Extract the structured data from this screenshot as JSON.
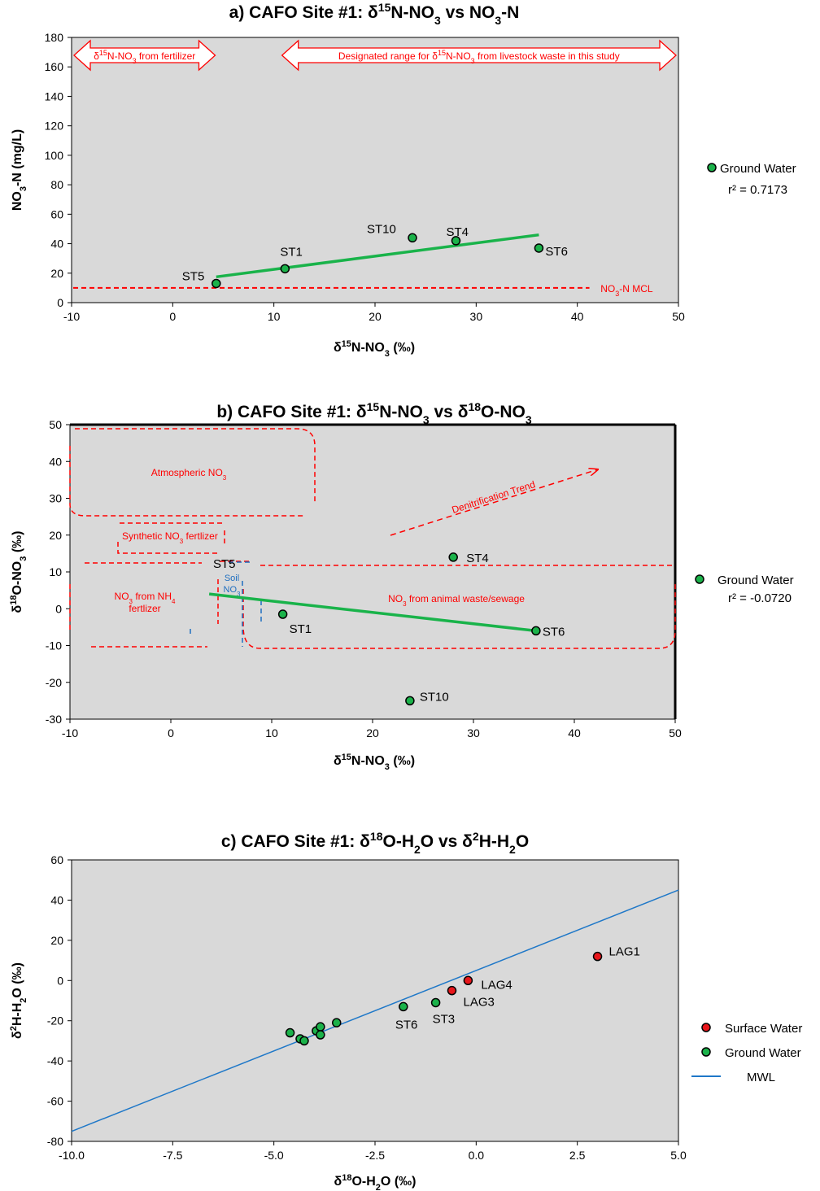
{
  "colors": {
    "plot_bg": "#d9d9d9",
    "ground_water": "#1bb24a",
    "surface_water": "#e8161b",
    "trend": "#19b34a",
    "annotation_red": "#ff0000",
    "annotation_blue": "#1f6fc0",
    "mwl": "#1f78c8"
  },
  "chart_data": [
    {
      "type": "scatter",
      "title_parts": [
        "a) CAFO Site #1:  δ",
        "15",
        "N-NO",
        "3",
        " vs  NO",
        "3",
        "-N"
      ],
      "xlabel_parts": [
        "δ",
        "15",
        "N-NO",
        "3",
        " (‰)"
      ],
      "ylabel_parts": [
        "NO",
        "3",
        "-N  (mg/L)"
      ],
      "xlim": [
        -10,
        50
      ],
      "ylim": [
        0,
        180
      ],
      "xticks": [
        "-10",
        "0",
        "10",
        "20",
        "30",
        "40",
        "50"
      ],
      "xtick_values": [
        -10,
        0,
        10,
        20,
        30,
        40,
        50
      ],
      "yticks": [
        "0",
        "20",
        "40",
        "60",
        "80",
        "100",
        "120",
        "140",
        "160",
        "180"
      ],
      "ytick_values": [
        0,
        20,
        40,
        60,
        80,
        100,
        120,
        140,
        160,
        180
      ],
      "series": [
        {
          "name": "Ground Water",
          "points": [
            {
              "label": "ST5",
              "x": 4.3,
              "y": 13
            },
            {
              "label": "ST1",
              "x": 11.1,
              "y": 23
            },
            {
              "label": "ST10",
              "x": 23.7,
              "y": 44
            },
            {
              "label": "ST4",
              "x": 28.0,
              "y": 42
            },
            {
              "label": "ST6",
              "x": 36.2,
              "y": 37
            }
          ]
        }
      ],
      "trendline": {
        "x": [
          4.3,
          36.2
        ],
        "y": [
          17.5,
          46
        ]
      },
      "r2": "r² = 0.7173",
      "mcl": {
        "y": 10,
        "label_main": "NO",
        "label_sub": "3",
        "label_tail": "-N MCL"
      },
      "arrows": [
        {
          "from": -10,
          "to": 5.0,
          "parts": [
            "δ",
            "15",
            "N-NO",
            "3",
            " from fertilizer"
          ]
        },
        {
          "from": 10,
          "to": 50,
          "parts": [
            "Designated range for δ",
            "15",
            "N-NO",
            "3",
            " from livestock waste in this study"
          ]
        }
      ],
      "legend": "right"
    },
    {
      "type": "scatter",
      "title_parts": [
        "b) CAFO Site #1:  δ",
        "15",
        "N-NO",
        "3",
        " vs  δ",
        "18",
        "O-NO",
        "3"
      ],
      "xlabel_parts": [
        "δ",
        "15",
        "N-NO",
        "3",
        " (‰)"
      ],
      "ylabel_parts": [
        "δ",
        "18",
        "O-NO",
        "3",
        "  (‰)"
      ],
      "xlim": [
        -10,
        50
      ],
      "ylim": [
        -30,
        50
      ],
      "xticks": [
        "-10",
        "0",
        "10",
        "20",
        "30",
        "40",
        "50"
      ],
      "xtick_values": [
        -10,
        0,
        10,
        20,
        30,
        40,
        50
      ],
      "yticks": [
        "-30",
        "-20",
        "-10",
        "0",
        "10",
        "20",
        "30",
        "40",
        "50"
      ],
      "ytick_values": [
        -30,
        -20,
        -10,
        0,
        10,
        20,
        30,
        40,
        50
      ],
      "series": [
        {
          "name": "Ground Water",
          "points": [
            {
              "label": "ST5",
              "x": 4.3,
              "y": 13
            },
            {
              "label": "ST1",
              "x": 11.1,
              "y": -1.5
            },
            {
              "label": "ST4",
              "x": 28.0,
              "y": 14
            },
            {
              "label": "ST6",
              "x": 36.2,
              "y": -6
            },
            {
              "label": "ST10",
              "x": 23.7,
              "y": -25
            }
          ]
        }
      ],
      "trendline": {
        "x": [
          3.8,
          36.2
        ],
        "y": [
          4,
          -6
        ]
      },
      "r2": "r² = -0.0720",
      "annotations": {
        "atmospheric": [
          "Atmospheric NO",
          "3"
        ],
        "synthetic": [
          "Synthetic NO",
          "3",
          " fertlizer"
        ],
        "nh4_line1": [
          "NO",
          "3",
          " from NH",
          "4"
        ],
        "nh4_line2": "fertlizer",
        "soil_line1": "Soil",
        "soil_line2": [
          "NO",
          "3"
        ],
        "animal": [
          "NO",
          "3",
          " from animal waste/sewage"
        ],
        "denitrification": "Denitrification Trend"
      },
      "legend": "right"
    },
    {
      "type": "scatter",
      "title_parts": [
        "c) CAFO Site #1:  δ",
        "18",
        "O-H",
        "2",
        "O  vs  δ",
        "2",
        "H-H",
        "2",
        "O"
      ],
      "xlabel_parts": [
        "δ",
        "18",
        "O-H",
        "2",
        "O  (‰)"
      ],
      "ylabel_parts": [
        "δ",
        "2",
        "H-H",
        "2",
        "O   (‰)"
      ],
      "xlim": [
        -10,
        5
      ],
      "ylim": [
        -80,
        60
      ],
      "xticks": [
        "-10.0",
        "-7.5",
        "-5.0",
        "-2.5",
        "0.0",
        "2.5",
        "5.0"
      ],
      "xtick_values": [
        -10,
        -7.5,
        -5,
        -2.5,
        0,
        2.5,
        5
      ],
      "yticks": [
        "-80",
        "-60",
        "-40",
        "-20",
        "0",
        "20",
        "40",
        "60"
      ],
      "ytick_values": [
        -80,
        -60,
        -40,
        -20,
        0,
        20,
        40,
        60
      ],
      "series": [
        {
          "name": "Surface Water",
          "points": [
            {
              "label": "LAG1",
              "x": 3.0,
              "y": 12
            },
            {
              "label": "LAG4",
              "x": -0.2,
              "y": 0
            },
            {
              "label": "LAG3",
              "x": -0.6,
              "y": -5
            }
          ]
        },
        {
          "name": "Ground Water",
          "points": [
            {
              "label": "ST6",
              "x": -1.8,
              "y": -13
            },
            {
              "label": "ST3",
              "x": -1.0,
              "y": -11
            },
            {
              "label": "",
              "x": -4.6,
              "y": -26
            },
            {
              "label": "",
              "x": -4.35,
              "y": -29
            },
            {
              "label": "",
              "x": -4.25,
              "y": -30
            },
            {
              "label": "",
              "x": -3.95,
              "y": -25
            },
            {
              "label": "",
              "x": -3.85,
              "y": -23
            },
            {
              "label": "",
              "x": -3.85,
              "y": -27
            },
            {
              "label": "",
              "x": -3.45,
              "y": -21
            }
          ]
        }
      ],
      "mwl": {
        "name": "MWL",
        "slope": 8,
        "intercept": 5
      },
      "legend": "right"
    }
  ]
}
